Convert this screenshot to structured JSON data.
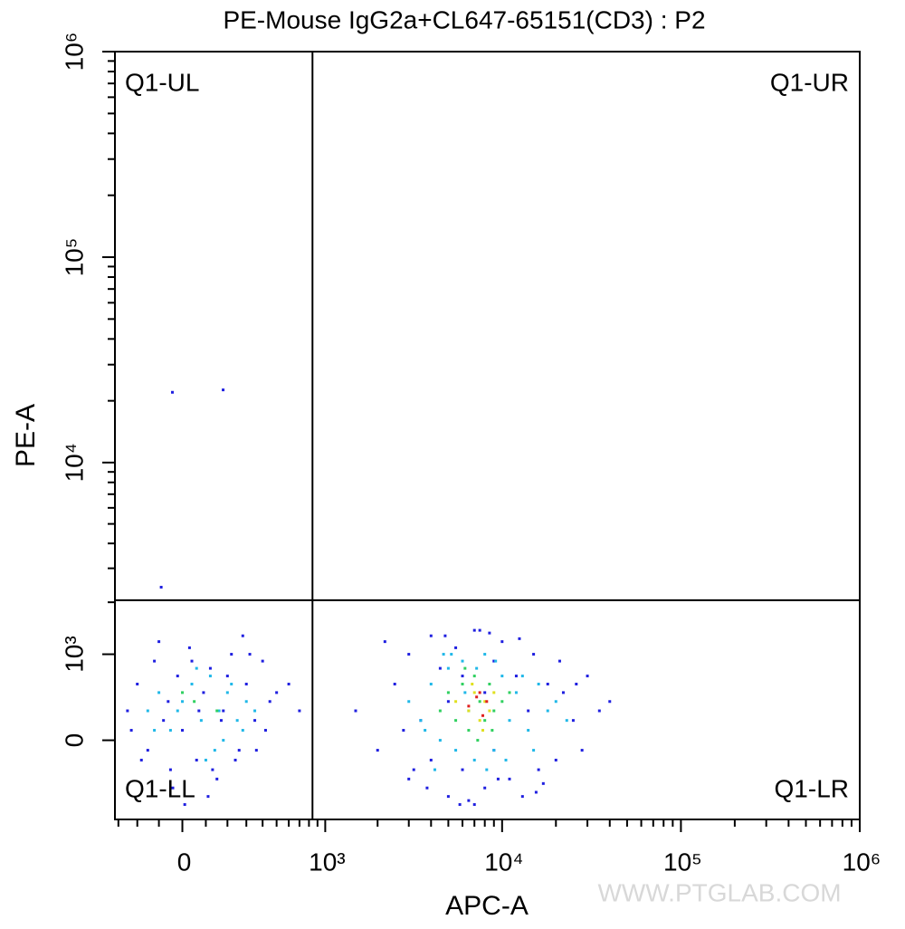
{
  "chart_data": {
    "type": "scatter",
    "title": "PE-Mouse IgG2a+CL647-65151(CD3) : P2",
    "x_label": "APC-A",
    "y_label": "PE-A",
    "watermark": "WWW.PTGLAB.COM",
    "xscale": "biexponential",
    "yscale": "biexponential",
    "xlim": [
      -320,
      1000000
    ],
    "ylim": [
      -900,
      1000000
    ],
    "xticks": [
      0,
      {
        "value": 1000,
        "label": "10³"
      },
      {
        "value": 10000,
        "label": "10⁴"
      },
      {
        "value": 100000,
        "label": "10⁵"
      },
      {
        "value": 1000000,
        "label": "10⁶"
      }
    ],
    "yticks": [
      0,
      {
        "value": 1000,
        "label": "10³"
      },
      {
        "value": 10000,
        "label": "10⁴"
      },
      {
        "value": 100000,
        "label": "10⁵"
      },
      {
        "value": 1000000,
        "label": "10⁶"
      }
    ],
    "xminorticks": [
      -300,
      -200,
      -100,
      100,
      200,
      300,
      400,
      500,
      600,
      700,
      800,
      900,
      2000,
      3000,
      4000,
      5000,
      6000,
      7000,
      8000,
      9000,
      20000,
      30000,
      40000,
      50000,
      60000,
      70000,
      80000,
      90000,
      200000,
      300000,
      400000,
      500000,
      600000,
      700000,
      800000,
      900000
    ],
    "yminorticks": [
      2000,
      3000,
      4000,
      5000,
      6000,
      7000,
      8000,
      9000,
      20000,
      30000,
      40000,
      50000,
      60000,
      70000,
      80000,
      90000,
      200000,
      300000,
      400000,
      500000,
      600000,
      700000,
      800000,
      900000
    ],
    "gate": {
      "x": 840,
      "y": 2050,
      "labels": [
        "Q1-UL",
        "Q1-UR",
        "Q1-LL",
        "Q1-LR"
      ]
    },
    "series": [
      {
        "color": "#1f1fe0",
        "x": [
          -250,
          -200,
          -150,
          -120,
          -80,
          -50,
          -20,
          0,
          30,
          60,
          90,
          120,
          150,
          180,
          220,
          260,
          300,
          350,
          400,
          450,
          -180,
          -100,
          -40,
          10,
          70,
          130,
          200,
          280,
          360,
          500,
          -230,
          -60,
          40,
          110,
          170,
          240,
          320,
          420,
          600,
          700,
          1500,
          2000,
          2500,
          3000,
          3000,
          3500,
          4000,
          4000,
          4500,
          5000,
          5000,
          5500,
          6000,
          6000,
          7000,
          7000,
          8000,
          8000,
          9000,
          9000,
          10000,
          11000,
          12000,
          13000,
          14000,
          15000,
          16000,
          18000,
          20000,
          22000,
          25000,
          28000,
          30000,
          35000,
          40000,
          2200,
          2800,
          3800,
          4800,
          6500,
          7500,
          9500,
          12500,
          17000,
          21000,
          26000,
          3200,
          5800,
          8500,
          15500,
          -42,
          179,
          -90
        ],
        "y": [
          300,
          600,
          -100,
          900,
          200,
          -300,
          700,
          100,
          1100,
          -200,
          500,
          800,
          -400,
          300,
          1000,
          -100,
          600,
          200,
          900,
          400,
          -200,
          1200,
          -500,
          -700,
          300,
          -300,
          700,
          1300,
          -100,
          500,
          100,
          400,
          900,
          -600,
          200,
          -200,
          1000,
          100,
          600,
          300,
          300,
          -100,
          600,
          1000,
          -400,
          200,
          1300,
          -200,
          800,
          -600,
          400,
          1100,
          -300,
          700,
          1400,
          -700,
          500,
          -500,
          900,
          -100,
          1200,
          -400,
          700,
          -600,
          300,
          1000,
          -300,
          600,
          -200,
          500,
          200,
          -100,
          700,
          300,
          400,
          1200,
          100,
          -500,
          1300,
          -650,
          1400,
          -400,
          1250,
          -450,
          900,
          600,
          -300,
          -700,
          1350,
          -550,
          22000,
          22600,
          2400
        ]
      },
      {
        "color": "#20b8e8",
        "x": [
          -150,
          -100,
          -50,
          0,
          40,
          80,
          120,
          160,
          200,
          250,
          300,
          -120,
          -20,
          60,
          140,
          220,
          280,
          350,
          100,
          180,
          3000,
          3500,
          4000,
          4500,
          5000,
          5500,
          6000,
          6500,
          7000,
          8000,
          9000,
          10000,
          11000,
          12000,
          14000,
          16000,
          18000,
          20000,
          4200,
          5200,
          6200,
          7200,
          8200,
          9200,
          10500,
          13000,
          15000,
          3700,
          4700,
          23000
        ],
        "y": [
          300,
          500,
          100,
          400,
          600,
          200,
          700,
          300,
          500,
          200,
          400,
          100,
          300,
          800,
          -100,
          600,
          100,
          300,
          -200,
          0,
          400,
          200,
          600,
          0,
          800,
          -100,
          900,
          300,
          -200,
          1000,
          -100,
          700,
          200,
          500,
          100,
          600,
          300,
          400,
          -300,
          1000,
          500,
          800,
          -300,
          900,
          -200,
          700,
          -100,
          100,
          1000,
          200
        ]
      },
      {
        "color": "#30d060",
        "x": [
          4500,
          5000,
          5500,
          6000,
          6500,
          7000,
          7500,
          8000,
          8500,
          9000,
          10000,
          11000,
          6200,
          7300,
          8800,
          50,
          150,
          0
        ],
        "y": [
          300,
          500,
          200,
          600,
          100,
          700,
          400,
          200,
          600,
          300,
          400,
          500,
          800,
          0,
          100,
          400,
          300,
          500
        ]
      },
      {
        "color": "#e0e020",
        "x": [
          5500,
          6500,
          7000,
          7500,
          8000,
          8500,
          9000,
          6800,
          7800
        ],
        "y": [
          400,
          300,
          500,
          200,
          400,
          300,
          500,
          600,
          100
        ]
      },
      {
        "color": "#e02020",
        "x": [
          6500,
          7200,
          7800,
          8200,
          7500
        ],
        "y": [
          350,
          450,
          250,
          400,
          500
        ]
      }
    ]
  }
}
